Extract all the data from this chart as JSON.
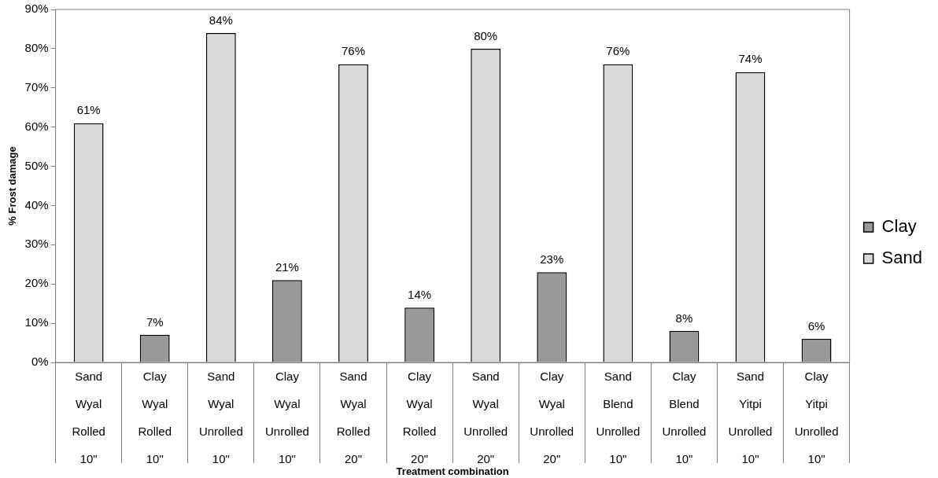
{
  "chart_data": {
    "type": "bar",
    "annotations": [
      "Treatment combination"
    ],
    "ylabel": "% Frost damage",
    "categories": [
      "Sand Wyal Rolled 10\"",
      "Clay Wyal Rolled 10\"",
      "Sand Wyal Unrolled 10\"",
      "Clay Wyal Unrolled 10\"",
      "Sand Wyal Rolled 20\"",
      "Clay Wyal Rolled 20\"",
      "Sand Wyal Unrolled 20\"",
      "Clay Wyal Unrolled 20\"",
      "Sand Blend Unrolled 10\"",
      "Clay Blend Unrolled 10\"",
      "Sand Yitpi Unrolled 10\"",
      "Clay Yitpi Unrolled 10\""
    ],
    "series": [
      {
        "name": "Clay",
        "color": "#999999",
        "values": [
          null,
          7,
          null,
          21,
          null,
          14,
          null,
          23,
          null,
          8,
          null,
          6
        ],
        "value_labels": [
          null,
          "7%",
          null,
          "21%",
          null,
          "14%",
          null,
          "23%",
          null,
          "8%",
          null,
          "6%"
        ]
      },
      {
        "name": "Sand",
        "color": "#d9d9d9",
        "values": [
          61,
          null,
          84,
          null,
          76,
          null,
          80,
          null,
          76,
          null,
          74,
          null
        ],
        "value_labels": [
          "61%",
          null,
          "84%",
          null,
          "76%",
          null,
          "80%",
          null,
          "76%",
          null,
          "74%",
          null
        ]
      }
    ],
    "ylim": [
      0,
      90
    ],
    "yticks": [
      {
        "value": 0,
        "label": "0%"
      },
      {
        "value": 10,
        "label": "10%"
      },
      {
        "value": 20,
        "label": "20%"
      },
      {
        "value": 30,
        "label": "30%"
      },
      {
        "value": 40,
        "label": "40%"
      },
      {
        "value": 50,
        "label": "50%"
      },
      {
        "value": 60,
        "label": "60%"
      },
      {
        "value": 70,
        "label": "70%"
      },
      {
        "value": 80,
        "label": "80%"
      },
      {
        "value": 90,
        "label": "90%"
      }
    ],
    "grid": false,
    "legend": "right"
  }
}
